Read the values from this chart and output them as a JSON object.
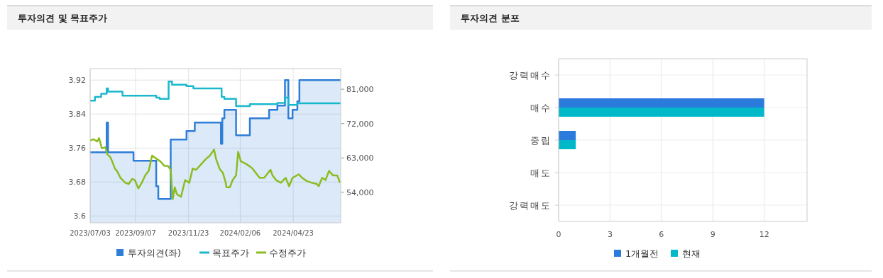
{
  "chart_data": [
    {
      "type": "line",
      "title": "투자의견 및 목표주가",
      "xlim": [
        "2023-07-03",
        "2024-07-01"
      ],
      "xticks": [
        {
          "value": "2023-07-03",
          "label": "2023/07/03"
        },
        {
          "value": "2023-09-07",
          "label": "2023/09/07"
        },
        {
          "value": "2023-11-23",
          "label": "2023/11/23"
        },
        {
          "value": "2024-02-06",
          "label": "2024/02/06"
        },
        {
          "value": "2024-04-23",
          "label": "2024/04/23"
        }
      ],
      "ylim": [
        3.584,
        3.947
      ],
      "yticks": [
        3.6,
        3.68,
        3.76,
        3.84,
        3.92
      ],
      "y2lim": [
        46000,
        86400
      ],
      "y2ticks": [
        {
          "value": 54000,
          "label": "54,000"
        },
        {
          "value": 63000,
          "label": "63,000"
        },
        {
          "value": 72000,
          "label": "72,000"
        },
        {
          "value": 81000,
          "label": "81,000"
        }
      ],
      "grid": true,
      "legend": "bottom",
      "series": [
        {
          "name": "투자의견(좌)",
          "type": "area",
          "color": "#2f7ed8",
          "x": [
            "2023-07-03",
            "2023-07-27",
            "2023-07-27",
            "2023-07-29",
            "2023-07-29",
            "2023-09-04",
            "2023-09-04",
            "2023-10-07",
            "2023-10-07",
            "2023-10-10",
            "2023-10-10",
            "2023-10-28",
            "2023-10-28",
            "2023-11-20",
            "2023-11-20",
            "2023-12-02",
            "2023-12-02",
            "2024-01-09",
            "2024-01-09",
            "2024-01-11",
            "2024-01-11",
            "2024-01-14",
            "2024-01-14",
            "2024-01-31",
            "2024-01-31",
            "2024-02-20",
            "2024-02-20",
            "2024-03-19",
            "2024-03-19",
            "2024-03-31",
            "2024-03-31",
            "2024-04-11",
            "2024-04-11",
            "2024-04-16",
            "2024-04-16",
            "2024-04-22",
            "2024-04-22",
            "2024-04-29",
            "2024-04-29",
            "2024-05-02",
            "2024-05-02",
            "2024-07-01"
          ],
          "values": [
            3.75,
            3.75,
            3.82,
            3.82,
            3.75,
            3.75,
            3.73,
            3.73,
            3.67,
            3.67,
            3.64,
            3.64,
            3.78,
            3.78,
            3.8,
            3.8,
            3.82,
            3.82,
            3.77,
            3.77,
            3.83,
            3.83,
            3.85,
            3.85,
            3.79,
            3.79,
            3.83,
            3.83,
            3.85,
            3.85,
            3.86,
            3.86,
            3.92,
            3.92,
            3.83,
            3.83,
            3.85,
            3.85,
            3.87,
            3.87,
            3.92,
            3.92
          ]
        },
        {
          "name": "목표주가",
          "type": "step",
          "axis": "y2",
          "color": "#1ab8cc",
          "x": [
            "2023-07-03",
            "2023-07-10",
            "2023-07-19",
            "2023-07-27",
            "2023-07-29",
            "2023-08-19",
            "2023-10-07",
            "2023-10-12",
            "2023-10-25",
            "2023-10-30",
            "2023-11-20",
            "2023-11-30",
            "2024-01-10",
            "2024-01-14",
            "2024-01-31",
            "2024-02-20",
            "2024-03-31",
            "2024-04-11",
            "2024-04-16",
            "2024-04-29",
            "2024-07-01"
          ],
          "values": [
            78000,
            79000,
            79800,
            81200,
            80400,
            79300,
            78800,
            78500,
            83000,
            82200,
            81800,
            81200,
            79000,
            78500,
            76600,
            77100,
            77400,
            78800,
            76900,
            77300,
            77300
          ]
        },
        {
          "name": "수정주가",
          "type": "line",
          "axis": "y2",
          "color": "#8bbc21",
          "x": [
            "2023-07-03",
            "2023-07-08",
            "2023-07-13",
            "2023-07-16",
            "2023-07-20",
            "2023-07-25",
            "2023-07-28",
            "2023-08-01",
            "2023-08-04",
            "2023-08-08",
            "2023-08-11",
            "2023-08-16",
            "2023-08-23",
            "2023-08-28",
            "2023-09-02",
            "2023-09-06",
            "2023-09-11",
            "2023-09-16",
            "2023-09-21",
            "2023-09-26",
            "2023-10-01",
            "2023-10-08",
            "2023-10-13",
            "2023-10-19",
            "2023-10-24",
            "2023-10-28",
            "2023-10-31",
            "2023-11-03",
            "2023-11-06",
            "2023-11-12",
            "2023-11-18",
            "2023-11-24",
            "2023-11-29",
            "2023-12-04",
            "2023-12-09",
            "2023-12-18",
            "2023-12-24",
            "2023-12-30",
            "2024-01-02",
            "2024-01-07",
            "2024-01-12",
            "2024-01-16",
            "2024-01-17",
            "2024-01-22",
            "2024-01-26",
            "2024-01-31",
            "2024-02-03",
            "2024-02-07",
            "2024-02-14",
            "2024-02-19",
            "2024-02-24",
            "2024-02-29",
            "2024-03-05",
            "2024-03-12",
            "2024-03-21",
            "2024-03-24",
            "2024-03-29",
            "2024-04-05",
            "2024-04-12",
            "2024-04-17",
            "2024-04-22",
            "2024-05-01",
            "2024-05-06",
            "2024-05-13",
            "2024-05-20",
            "2024-05-27",
            "2024-05-30",
            "2024-06-04",
            "2024-06-09",
            "2024-06-14",
            "2024-06-20",
            "2024-06-26",
            "2024-06-30"
          ],
          "values": [
            67600,
            67900,
            67300,
            68200,
            65500,
            65800,
            63900,
            63300,
            62100,
            60200,
            59600,
            57800,
            56500,
            56200,
            57500,
            57200,
            55000,
            56500,
            58400,
            59600,
            63600,
            62700,
            62100,
            60900,
            60900,
            59900,
            52200,
            55300,
            53500,
            52800,
            57200,
            56500,
            60200,
            59900,
            60900,
            62700,
            63600,
            65200,
            62700,
            60200,
            59000,
            56500,
            55300,
            55300,
            57200,
            58400,
            64600,
            62100,
            61500,
            60900,
            60200,
            59000,
            57800,
            57800,
            59900,
            58400,
            57200,
            56500,
            57800,
            55600,
            57800,
            58700,
            57800,
            56900,
            56500,
            56200,
            55600,
            57800,
            57200,
            59600,
            58400,
            58400,
            56500
          ]
        }
      ]
    },
    {
      "type": "bar",
      "orientation": "horizontal",
      "title": "투자의견 분포",
      "categories": [
        "강력매수",
        "매수",
        "중립",
        "매도",
        "강력매도"
      ],
      "xlim": [
        0,
        14.5
      ],
      "xticks": [
        0,
        3,
        6,
        9,
        12
      ],
      "grid": true,
      "legend": "bottom",
      "series": [
        {
          "name": "1개월전",
          "color": "#2b7bdc",
          "values": [
            0,
            12,
            1,
            0,
            0
          ]
        },
        {
          "name": "현재",
          "color": "#00b8c8",
          "values": [
            0,
            12,
            1,
            0,
            0
          ]
        }
      ]
    }
  ]
}
